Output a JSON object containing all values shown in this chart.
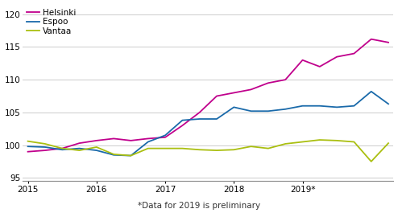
{
  "Helsinki": [
    99.0,
    99.2,
    99.5,
    100.3,
    100.7,
    101.0,
    100.7,
    101.0,
    101.2,
    103.0,
    105.0,
    107.5,
    108.0,
    108.5,
    109.5,
    110.0,
    113.0,
    112.0,
    113.5,
    114.0,
    116.2,
    115.7
  ],
  "Espoo": [
    99.8,
    99.7,
    99.3,
    99.5,
    99.2,
    98.5,
    98.4,
    100.5,
    101.5,
    103.8,
    104.0,
    104.0,
    105.8,
    105.2,
    105.2,
    105.5,
    106.0,
    106.0,
    105.8,
    106.0,
    108.2,
    106.3
  ],
  "Vantaa": [
    100.6,
    100.2,
    99.5,
    99.2,
    99.7,
    98.6,
    98.4,
    99.5,
    99.5,
    99.5,
    99.3,
    99.2,
    99.3,
    99.8,
    99.5,
    100.2,
    100.5,
    100.8,
    100.7,
    100.5,
    97.5,
    100.3
  ],
  "Helsinki_color": "#c0008c",
  "Espoo_color": "#1a6aaa",
  "Vantaa_color": "#aabf10",
  "xlabel_note": "*Data for 2019 is preliminary",
  "yticks": [
    95,
    100,
    105,
    110,
    115,
    120
  ],
  "xtick_labels": [
    "2015",
    "2016",
    "2017",
    "2018",
    "2019*"
  ],
  "xtick_positions": [
    0,
    4,
    8,
    12,
    16
  ],
  "ylim": [
    94.5,
    121.5
  ],
  "xlim": [
    -0.3,
    21.3
  ],
  "linewidth": 1.3,
  "legend_fontsize": 7.5,
  "note_fontsize": 7.5,
  "tick_labelsize": 7.5
}
